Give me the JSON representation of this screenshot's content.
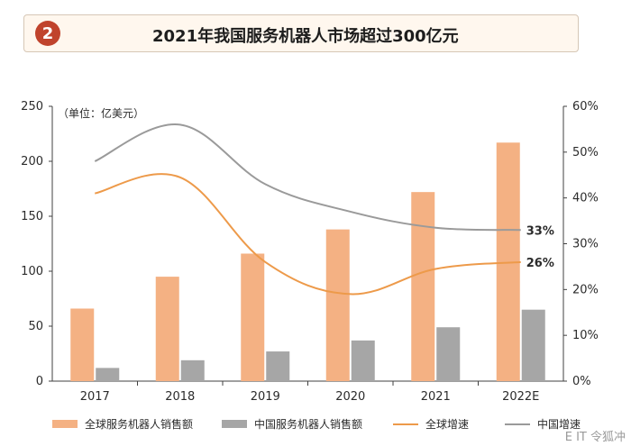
{
  "header": {
    "badge": "2",
    "title": "2021年我国服务机器人市场超过300亿元"
  },
  "watermark": "E IT 令狐冲",
  "colors": {
    "global_sales": "#f4b183",
    "china_sales": "#a6a6a6",
    "global_growth": "#ed9a4a",
    "china_growth": "#9a9a9a"
  },
  "chart_data": {
    "type": "bar",
    "unit": "（单位：亿美元）",
    "categories": [
      "2017",
      "2018",
      "2019",
      "2020",
      "2021",
      "2022E"
    ],
    "series": [
      {
        "name": "全球服务机器人销售额",
        "type": "bar",
        "axis": "left",
        "values": [
          66,
          95,
          116,
          138,
          172,
          217
        ]
      },
      {
        "name": "中国服务机器人销售额",
        "type": "bar",
        "axis": "left",
        "values": [
          12,
          19,
          27,
          37,
          49,
          65
        ]
      },
      {
        "name": "全球增速",
        "type": "line",
        "axis": "right",
        "values": [
          41,
          44.5,
          26,
          19,
          24.5,
          26
        ]
      },
      {
        "name": "中国增速",
        "type": "line",
        "axis": "right",
        "values": [
          48,
          56,
          43,
          37,
          33.5,
          33
        ]
      }
    ],
    "ylim_left": [
      0,
      250
    ],
    "yticks_left": [
      "0",
      "50",
      "100",
      "150",
      "200",
      "250"
    ],
    "ylim_right": [
      0,
      60
    ],
    "yticks_right": [
      "0%",
      "10%",
      "20%",
      "30%",
      "40%",
      "50%",
      "60%"
    ],
    "annotations": [
      {
        "series": "中国增速",
        "text": "33%"
      },
      {
        "series": "全球增速",
        "text": "26%"
      }
    ],
    "legend_position": "bottom"
  }
}
